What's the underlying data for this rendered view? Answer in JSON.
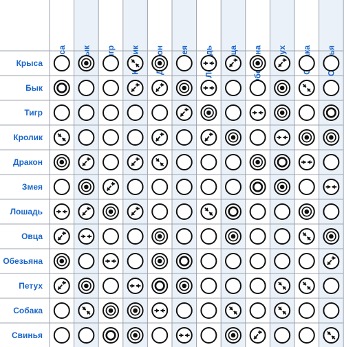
{
  "animals": [
    "Крыса",
    "Бык",
    "Тигр",
    "Кролик",
    "Дракон",
    "Змея",
    "Лошадь",
    "Овца",
    "Обезьяна",
    "Петух",
    "Собака",
    "Свинья"
  ],
  "symbol_names": {
    "e": "empty-circle-icon",
    "t": "triple-ring-icon",
    "d": "double-ring-icon",
    "x": "diagonal-arrows-icon",
    "r": "reverse-diagonal-arrows-icon",
    "h": "opposing-arrows-icon"
  },
  "grid": [
    [
      "e",
      "t",
      "e",
      "x",
      "t",
      "e",
      "h",
      "r",
      "t",
      "r",
      "e",
      "e"
    ],
    [
      "d",
      "e",
      "e",
      "r",
      "r",
      "t",
      "h",
      "e",
      "e",
      "t",
      "x",
      "e"
    ],
    [
      "e",
      "e",
      "e",
      "e",
      "e",
      "r",
      "t",
      "e",
      "h",
      "t",
      "e",
      "d"
    ],
    [
      "x",
      "e",
      "e",
      "e",
      "r",
      "e",
      "r",
      "t",
      "e",
      "h",
      "t",
      "t"
    ],
    [
      "t",
      "r",
      "e",
      "r",
      "x",
      "e",
      "e",
      "e",
      "t",
      "d",
      "h",
      "e"
    ],
    [
      "e",
      "t",
      "r",
      "e",
      "e",
      "e",
      "e",
      "e",
      "d",
      "t",
      "e",
      "h"
    ],
    [
      "h",
      "r",
      "t",
      "r",
      "e",
      "e",
      "x",
      "d",
      "e",
      "e",
      "t",
      "e"
    ],
    [
      "r",
      "h",
      "e",
      "e",
      "t",
      "e",
      "e",
      "t",
      "e",
      "e",
      "x",
      "t"
    ],
    [
      "t",
      "e",
      "h",
      "e",
      "t",
      "d",
      "e",
      "e",
      "e",
      "e",
      "e",
      "r"
    ],
    [
      "r",
      "t",
      "e",
      "h",
      "d",
      "t",
      "e",
      "e",
      "e",
      "x",
      "x",
      "e"
    ],
    [
      "e",
      "x",
      "t",
      "t",
      "h",
      "e",
      "e",
      "x",
      "e",
      "x",
      "e",
      "e"
    ],
    [
      "e",
      "e",
      "d",
      "t",
      "e",
      "h",
      "e",
      "t",
      "r",
      "e",
      "e",
      "x"
    ]
  ],
  "colors": {
    "header": "#1a66c9",
    "grid_line": "#9ca3ad",
    "alt_cell": "#eaf1f8",
    "symbol": "#111111"
  }
}
